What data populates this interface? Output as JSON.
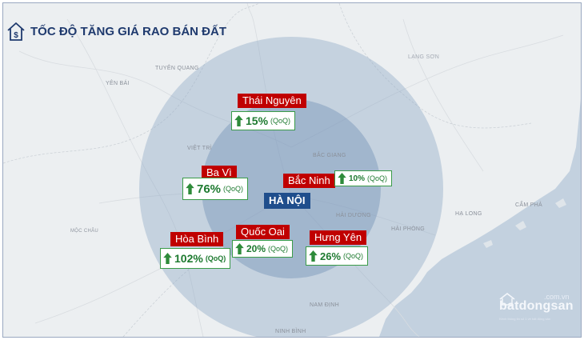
{
  "title": "TỐC ĐỘ TĂNG GIÁ RAO BÁN ĐẤT",
  "center": "HÀ NỘI",
  "growth_unit": "(QoQ)",
  "places": [
    {
      "name": "Thái Nguyên",
      "growth": "15%"
    },
    {
      "name": "Ba Vì",
      "growth": "76%"
    },
    {
      "name": "Bắc Ninh",
      "growth": "10%"
    },
    {
      "name": "Hòa Bình",
      "growth": "102%"
    },
    {
      "name": "Quốc Oai",
      "growth": "20%"
    },
    {
      "name": "Hưng Yên",
      "growth": "26%"
    }
  ],
  "map_labels": [
    "LẠNG SƠN",
    "TUYÊN QUANG",
    "YÊN BÁI",
    "VIỆT TRÌ",
    "BẮC GIANG",
    "HẢI DƯƠNG",
    "HẢI PHÒNG",
    "HẠ LONG",
    "CẨM PHẢ",
    "NAM ĐỊNH",
    "NINH BÌNH",
    "MỘC CHÂU"
  ],
  "brand": {
    "domain": ".com.vn",
    "name": "batdongsan",
    "tagline": "Kênh thông tin số 1 về bất động sản"
  },
  "colors": {
    "title": "#1f3a6e",
    "place_label_bg": "#c00000",
    "center_label_bg": "#1f4e8c",
    "growth_green": "#1e7a30",
    "outer_circle": "#8fa9c6",
    "inner_circle": "#6f8fb6",
    "sea": "#c3d1df"
  },
  "icons": {
    "title": "house-dollar-icon",
    "growth": "arrow-up-icon",
    "brand": "house-logo-icon"
  }
}
